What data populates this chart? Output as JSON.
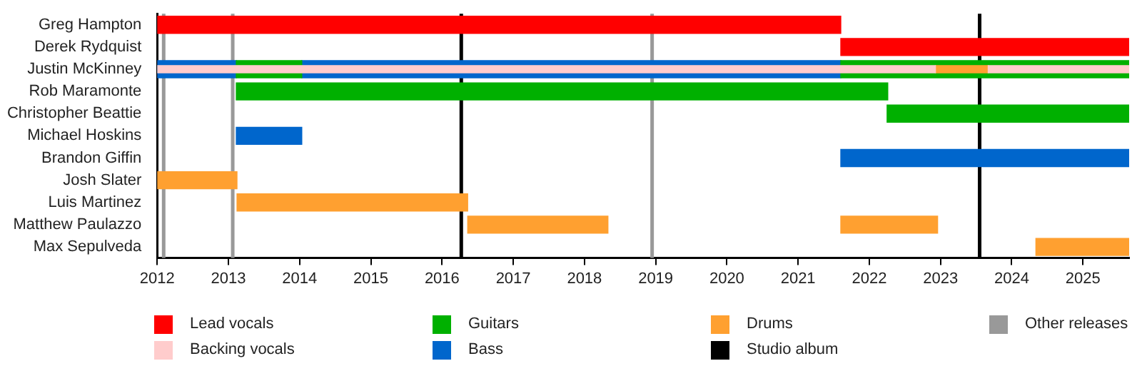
{
  "chart_data": {
    "type": "bar",
    "orientation": "horizontal",
    "legend": "bottom",
    "categories": [
      "Greg Hampton",
      "Derek Rydquist",
      "Justin McKinney",
      "Rob Maramonte",
      "Christopher Beattie",
      "Michael Hoskins",
      "Brandon Giffin",
      "Josh Slater",
      "Luis Martinez",
      "Matthew Paulazzo",
      "Max Sepulveda"
    ],
    "xlim": [
      2012,
      2025.65
    ],
    "xticks": [
      2012,
      2013,
      2014,
      2015,
      2016,
      2017,
      2018,
      2019,
      2020,
      2021,
      2022,
      2023,
      2024,
      2025
    ],
    "series": [
      {
        "name": "Lead vocals",
        "color": "#ff0000",
        "base": [
          2012,
          2021.6,
          null,
          null,
          null,
          null,
          null,
          null,
          null,
          null,
          null
        ],
        "values": [
          9.6,
          4.05,
          null,
          null,
          null,
          null,
          null,
          null,
          null,
          null,
          null
        ]
      },
      {
        "name": "Backing vocals",
        "color": "#ffcccc",
        "base": [
          null,
          null,
          2012,
          null,
          null,
          null,
          null,
          null,
          null,
          null,
          null
        ],
        "values": [
          null,
          null,
          10.93,
          null,
          null,
          null,
          null,
          null,
          null,
          null,
          null
        ]
      },
      {
        "color": "#ffcccc",
        "base": [
          null,
          null,
          2023.67,
          null,
          null,
          null,
          null,
          null,
          null,
          null,
          null
        ],
        "values": [
          null,
          null,
          1.98,
          null,
          null,
          null,
          null,
          null,
          null,
          null,
          null
        ]
      },
      {
        "color": "#ffa030",
        "base": [
          null,
          null,
          2022.93,
          null,
          null,
          null,
          null,
          null,
          null,
          null,
          null
        ],
        "values": [
          null,
          null,
          0.74,
          null,
          null,
          null,
          null,
          null,
          null,
          null,
          null
        ]
      },
      {
        "name": "Guitars",
        "color": "#00b000",
        "base": [
          null,
          null,
          2013.11,
          2013.11,
          2022.25,
          null,
          null,
          null,
          null,
          null,
          null
        ],
        "values": [
          null,
          null,
          0.92,
          9.15,
          3.4,
          null,
          null,
          null,
          null,
          null,
          null
        ]
      },
      {
        "color": "#00b000",
        "base": [
          null,
          null,
          2021.6,
          null,
          null,
          null,
          null,
          null,
          null,
          null,
          null
        ],
        "values": [
          null,
          null,
          4.05,
          null,
          null,
          null,
          null,
          null,
          null,
          null,
          null
        ]
      },
      {
        "name": "Bass",
        "color": "#0066cc",
        "base": [
          null,
          null,
          2012,
          null,
          null,
          2013.11,
          2021.6,
          null,
          null,
          null,
          null
        ],
        "values": [
          null,
          null,
          1.11,
          null,
          null,
          0.92,
          4.05,
          null,
          null,
          null,
          null
        ]
      },
      {
        "color": "#0066cc",
        "base": [
          null,
          null,
          2014.03,
          null,
          null,
          null,
          null,
          null,
          null,
          null,
          null
        ],
        "values": [
          null,
          null,
          7.57,
          null,
          null,
          null,
          null,
          null,
          null,
          null,
          null
        ]
      },
      {
        "name": "Drums",
        "color": "#ffa030",
        "base": [
          null,
          null,
          null,
          null,
          null,
          null,
          null,
          2012,
          2013.12,
          2016.36,
          2024.34
        ],
        "values": [
          null,
          null,
          null,
          null,
          null,
          null,
          null,
          1.12,
          3.24,
          1.97,
          1.31
        ]
      },
      {
        "color": "#ffa030",
        "base": [
          null,
          null,
          null,
          null,
          null,
          null,
          null,
          null,
          null,
          2021.6,
          null
        ],
        "values": [
          null,
          null,
          null,
          null,
          null,
          null,
          null,
          null,
          null,
          1.36,
          null
        ]
      }
    ],
    "ref_lines": [
      {
        "axis": "x",
        "value": 2016.27,
        "label": "Studio album",
        "color": "#000000"
      },
      {
        "axis": "x",
        "value": 2023.55,
        "color": "#000000"
      },
      {
        "axis": "x",
        "value": 2012.09,
        "label": "Other releases",
        "color": "#999999"
      },
      {
        "axis": "x",
        "value": 2013.06,
        "color": "#999999"
      },
      {
        "axis": "x",
        "value": 2018.95,
        "color": "#999999"
      }
    ]
  }
}
